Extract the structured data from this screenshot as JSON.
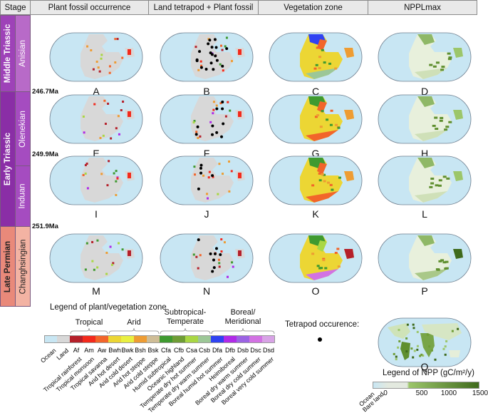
{
  "headers": {
    "stage": "Stage",
    "col1": "Plant fossil occurrence",
    "col2": "Land tetrapod + Plant fossil",
    "col3": "Vegetation zone",
    "col4": "NPPLmax"
  },
  "eras": [
    {
      "name": "Middle Triassic",
      "stage": "Anisian",
      "era_color": "#9e42b8",
      "stage_color": "#b86ac8",
      "text_color": "#ffffff"
    },
    {
      "name": "Early Triassic",
      "stage1": "Olenekian",
      "stage2": "Induan",
      "era_color": "#8a2ea6",
      "stage_color": "#a54cc0",
      "text_color": "#ffffff"
    },
    {
      "name": "Late Permian",
      "stage": "Changhsingian",
      "era_color": "#e9897a",
      "stage_color": "#f3b3a3",
      "text_color": "#222222"
    }
  ],
  "ages": [
    "246.7Ma",
    "249.9Ma",
    "251.9Ma"
  ],
  "panels": [
    {
      "letter": "A",
      "type": "fossil",
      "row": 0,
      "col": 0
    },
    {
      "letter": "B",
      "type": "tetra",
      "row": 0,
      "col": 1
    },
    {
      "letter": "C",
      "type": "veg",
      "row": 0,
      "col": 2
    },
    {
      "letter": "D",
      "type": "npp",
      "row": 0,
      "col": 3
    },
    {
      "letter": "E",
      "type": "fossil",
      "row": 1,
      "col": 0
    },
    {
      "letter": "F",
      "type": "tetra",
      "row": 1,
      "col": 1
    },
    {
      "letter": "G",
      "type": "veg",
      "row": 1,
      "col": 2
    },
    {
      "letter": "H",
      "type": "npp",
      "row": 1,
      "col": 3
    },
    {
      "letter": "I",
      "type": "fossil",
      "row": 2,
      "col": 0
    },
    {
      "letter": "J",
      "type": "tetra",
      "row": 2,
      "col": 1
    },
    {
      "letter": "K",
      "type": "veg",
      "row": 2,
      "col": 2
    },
    {
      "letter": "L",
      "type": "npp",
      "row": 2,
      "col": 3
    },
    {
      "letter": "M",
      "type": "fossil",
      "row": 3,
      "col": 0
    },
    {
      "letter": "N",
      "type": "tetra",
      "row": 3,
      "col": 1
    },
    {
      "letter": "O",
      "type": "veg",
      "row": 3,
      "col": 2
    },
    {
      "letter": "P",
      "type": "npp",
      "row": 3,
      "col": 3
    },
    {
      "letter": "Q",
      "type": "modern",
      "row": 4,
      "col": 3
    }
  ],
  "veg_legend": {
    "title": "Legend of plant/vegetation zone",
    "groups": [
      "Tropical",
      "Arid",
      "Subtropical-\nTemperate",
      "Boreal/\nMeridional"
    ],
    "zones": [
      {
        "code": "",
        "name": "Ocean",
        "color": "#c8e6f3"
      },
      {
        "code": "",
        "name": "Land",
        "color": "#d8d8d8"
      },
      {
        "code": "Af",
        "name": "Tropical rainforest",
        "color": "#b5202a"
      },
      {
        "code": "Am",
        "name": "Tropical monsoon",
        "color": "#f32a1c"
      },
      {
        "code": "Aw",
        "name": "Tropical savanna",
        "color": "#f2652a"
      },
      {
        "code": "Bwh",
        "name": "Arid hot desert",
        "color": "#ecd634"
      },
      {
        "code": "Bwk",
        "name": "Arid cold desert",
        "color": "#e9f041"
      },
      {
        "code": "Bsh",
        "name": "Arid hot steppe",
        "color": "#ee9c33"
      },
      {
        "code": "Bsk",
        "name": "Arid cold steppe",
        "color": "#cfbd96"
      },
      {
        "code": "Cfa",
        "name": "Humid subtropical",
        "color": "#3f9a30"
      },
      {
        "code": "Cfb",
        "name": "Oceanic highland",
        "color": "#6f9d36"
      },
      {
        "code": "Csa",
        "name": "Temperate dry hot summer",
        "color": "#a9d744"
      },
      {
        "code": "Csb",
        "name": "Temperate dry warm summer",
        "color": "#9cc797"
      },
      {
        "code": "Dfa",
        "name": "Boreal humid hot summer",
        "color": "#3043f2"
      },
      {
        "code": "Dfb",
        "name": "Heimiboreal",
        "color": "#b02ae8"
      },
      {
        "code": "Dsb",
        "name": "Boreal dry warm summer",
        "color": "#9b63e3"
      },
      {
        "code": "Dsc",
        "name": "Boreal dry cold summer",
        "color": "#d272e3"
      },
      {
        "code": "Dsd",
        "name": "Boreal very cold summer",
        "color": "#d8a3e6"
      }
    ]
  },
  "tetrapod_legend": {
    "label": "Tetrapod occurence:",
    "marker": "black-dot"
  },
  "npp_legend": {
    "title": "Legend of NPP (gC/m²/y)",
    "ticks": [
      "0",
      "500",
      "1000",
      "1500"
    ],
    "range": [
      0,
      1500
    ],
    "low_labels": [
      "Ocean",
      "Bare land"
    ],
    "colors": [
      "#c8e6f3",
      "#e3e9df",
      "#9cc66a",
      "#3f6a1c"
    ]
  }
}
